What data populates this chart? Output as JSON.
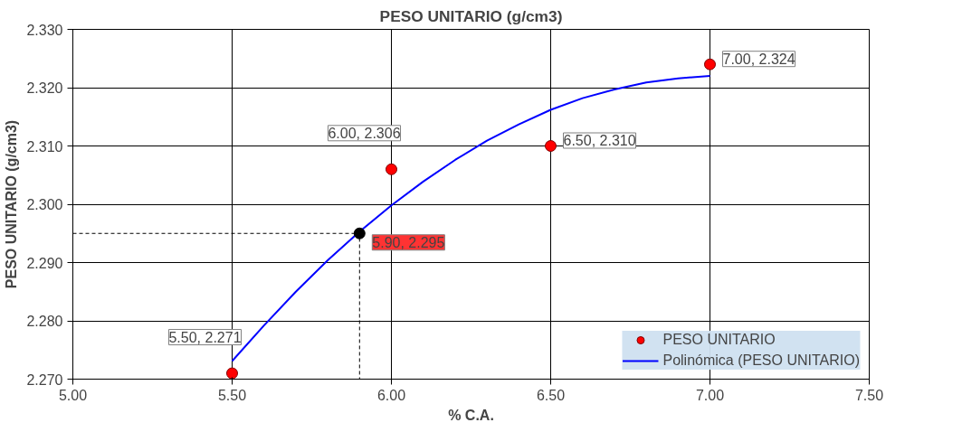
{
  "chart_data": {
    "type": "scatter",
    "title": "PESO UNITARIO (g/cm3)",
    "xlabel": "% C.A.",
    "ylabel": "PESO UNITARIO (g/cm3)",
    "xlim": [
      5.0,
      7.5
    ],
    "ylim": [
      2.27,
      2.33
    ],
    "xticks": [
      {
        "value": 5.0,
        "label": "5.00"
      },
      {
        "value": 5.5,
        "label": "5.50"
      },
      {
        "value": 6.0,
        "label": "6.00"
      },
      {
        "value": 6.5,
        "label": "6.50"
      },
      {
        "value": 7.0,
        "label": "7.00"
      },
      {
        "value": 7.5,
        "label": "7.50"
      }
    ],
    "yticks": [
      {
        "value": 2.27,
        "label": "2.270"
      },
      {
        "value": 2.28,
        "label": "2.280"
      },
      {
        "value": 2.29,
        "label": "2.290"
      },
      {
        "value": 2.3,
        "label": "2.300"
      },
      {
        "value": 2.31,
        "label": "2.310"
      },
      {
        "value": 2.32,
        "label": "2.320"
      },
      {
        "value": 2.33,
        "label": "2.330"
      }
    ],
    "grid": true,
    "legend": "bottom right",
    "series": [
      {
        "name": "PESO UNITARIO",
        "marker": "circle",
        "color": "#ff0000",
        "x": [
          5.5,
          6.0,
          6.5,
          7.0
        ],
        "values": [
          2.271,
          2.306,
          2.31,
          2.324
        ],
        "value_labels": [
          "5.50, 2.271",
          "6.00, 2.306",
          "6.50, 2.310",
          "7.00, 2.324"
        ]
      },
      {
        "name": "Polinómica (PESO UNITARIO)",
        "type": "line",
        "color": "#0000ff",
        "line_style": "solid",
        "x": [
          5.5,
          5.6,
          5.7,
          5.8,
          5.9,
          6.0,
          6.1,
          6.2,
          6.3,
          6.4,
          6.5,
          6.6,
          6.7,
          6.8,
          6.9,
          7.0
        ],
        "values": [
          2.2731,
          2.2792,
          2.285,
          2.2904,
          2.2953,
          2.2998,
          2.3039,
          2.3076,
          2.3109,
          2.3137,
          2.3162,
          2.3182,
          2.3197,
          2.3209,
          2.3216,
          2.322
        ]
      },
      {
        "type": "line",
        "color": "#000000",
        "line_style": "dashed",
        "x": [
          5.0,
          5.9,
          5.9
        ],
        "values": [
          2.295,
          2.295,
          2.27
        ]
      },
      {
        "marker": "circle",
        "color": "#000000",
        "x": [
          5.9
        ],
        "values": [
          2.295
        ],
        "value_labels": [
          "5.90, 2.295"
        ]
      }
    ]
  }
}
